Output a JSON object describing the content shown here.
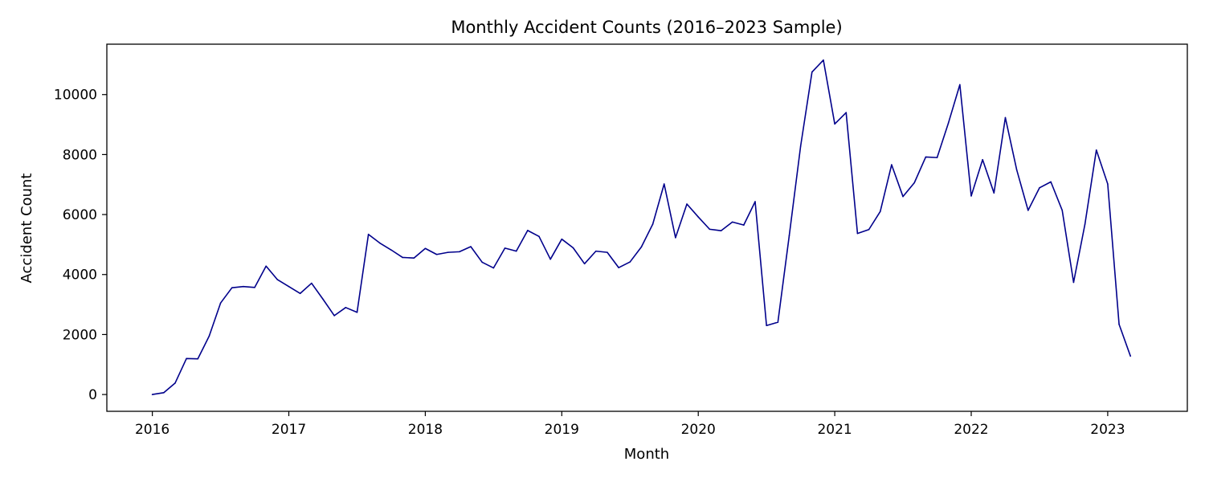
{
  "chart_data": {
    "type": "line",
    "title": "Monthly Accident Counts (2016–2023 Sample)",
    "xlabel": "Month",
    "ylabel": "Accident Count",
    "x_start": "2016-01",
    "xlim": [
      "2015-09",
      "2023-08"
    ],
    "ylim": [
      -560,
      11680
    ],
    "x_ticks": [
      "2016",
      "2017",
      "2018",
      "2019",
      "2020",
      "2021",
      "2022",
      "2023"
    ],
    "y_ticks": [
      0,
      2000,
      4000,
      6000,
      8000,
      10000
    ],
    "grid": false,
    "legend": "none",
    "line_color": "#00008b",
    "series": [
      {
        "x": [
          "2016-01",
          "2016-02",
          "2016-03",
          "2016-04",
          "2016-05",
          "2016-06",
          "2016-07",
          "2016-08",
          "2016-09",
          "2016-10",
          "2016-11",
          "2016-12",
          "2017-01",
          "2017-02",
          "2017-03",
          "2017-04",
          "2017-05",
          "2017-06",
          "2017-07",
          "2017-08",
          "2017-09",
          "2017-10",
          "2017-11",
          "2017-12",
          "2018-01",
          "2018-02",
          "2018-03",
          "2018-04",
          "2018-05",
          "2018-06",
          "2018-07",
          "2018-08",
          "2018-09",
          "2018-10",
          "2018-11",
          "2018-12",
          "2019-01",
          "2019-02",
          "2019-03",
          "2019-04",
          "2019-05",
          "2019-06",
          "2019-07",
          "2019-08",
          "2019-09",
          "2019-10",
          "2019-11",
          "2019-12",
          "2020-01",
          "2020-02",
          "2020-03",
          "2020-04",
          "2020-05",
          "2020-06",
          "2020-07",
          "2020-08",
          "2020-09",
          "2020-10",
          "2020-11",
          "2020-12",
          "2021-01",
          "2021-02",
          "2021-03",
          "2021-04",
          "2021-05",
          "2021-06",
          "2021-07",
          "2021-08",
          "2021-09",
          "2021-10",
          "2021-11",
          "2021-12",
          "2022-01",
          "2022-02",
          "2022-03",
          "2022-04",
          "2022-05",
          "2022-06",
          "2022-07",
          "2022-08",
          "2022-09",
          "2022-10",
          "2022-11",
          "2022-12",
          "2023-01",
          "2023-02",
          "2023-03"
        ],
        "values": [
          0,
          60,
          380,
          1200,
          1190,
          1950,
          3050,
          3560,
          3600,
          3570,
          4280,
          3830,
          3600,
          3370,
          3710,
          3180,
          2630,
          2900,
          2740,
          5340,
          5050,
          4820,
          4570,
          4550,
          4870,
          4670,
          4740,
          4760,
          4930,
          4410,
          4220,
          4880,
          4780,
          5470,
          5270,
          4510,
          5180,
          4890,
          4360,
          4780,
          4740,
          4230,
          4420,
          4920,
          5680,
          7020,
          5230,
          6350,
          5920,
          5510,
          5460,
          5750,
          5650,
          6430,
          2300,
          2410,
          5300,
          8280,
          10750,
          11150,
          9020,
          9400,
          5370,
          5500,
          6100,
          7660,
          6600,
          7060,
          7920,
          7900,
          9060,
          10330,
          6620,
          7830,
          6720,
          9230,
          7490,
          6140,
          6890,
          7090,
          6140,
          3740,
          5680,
          8150,
          7020,
          2340,
          1280
        ]
      }
    ]
  }
}
